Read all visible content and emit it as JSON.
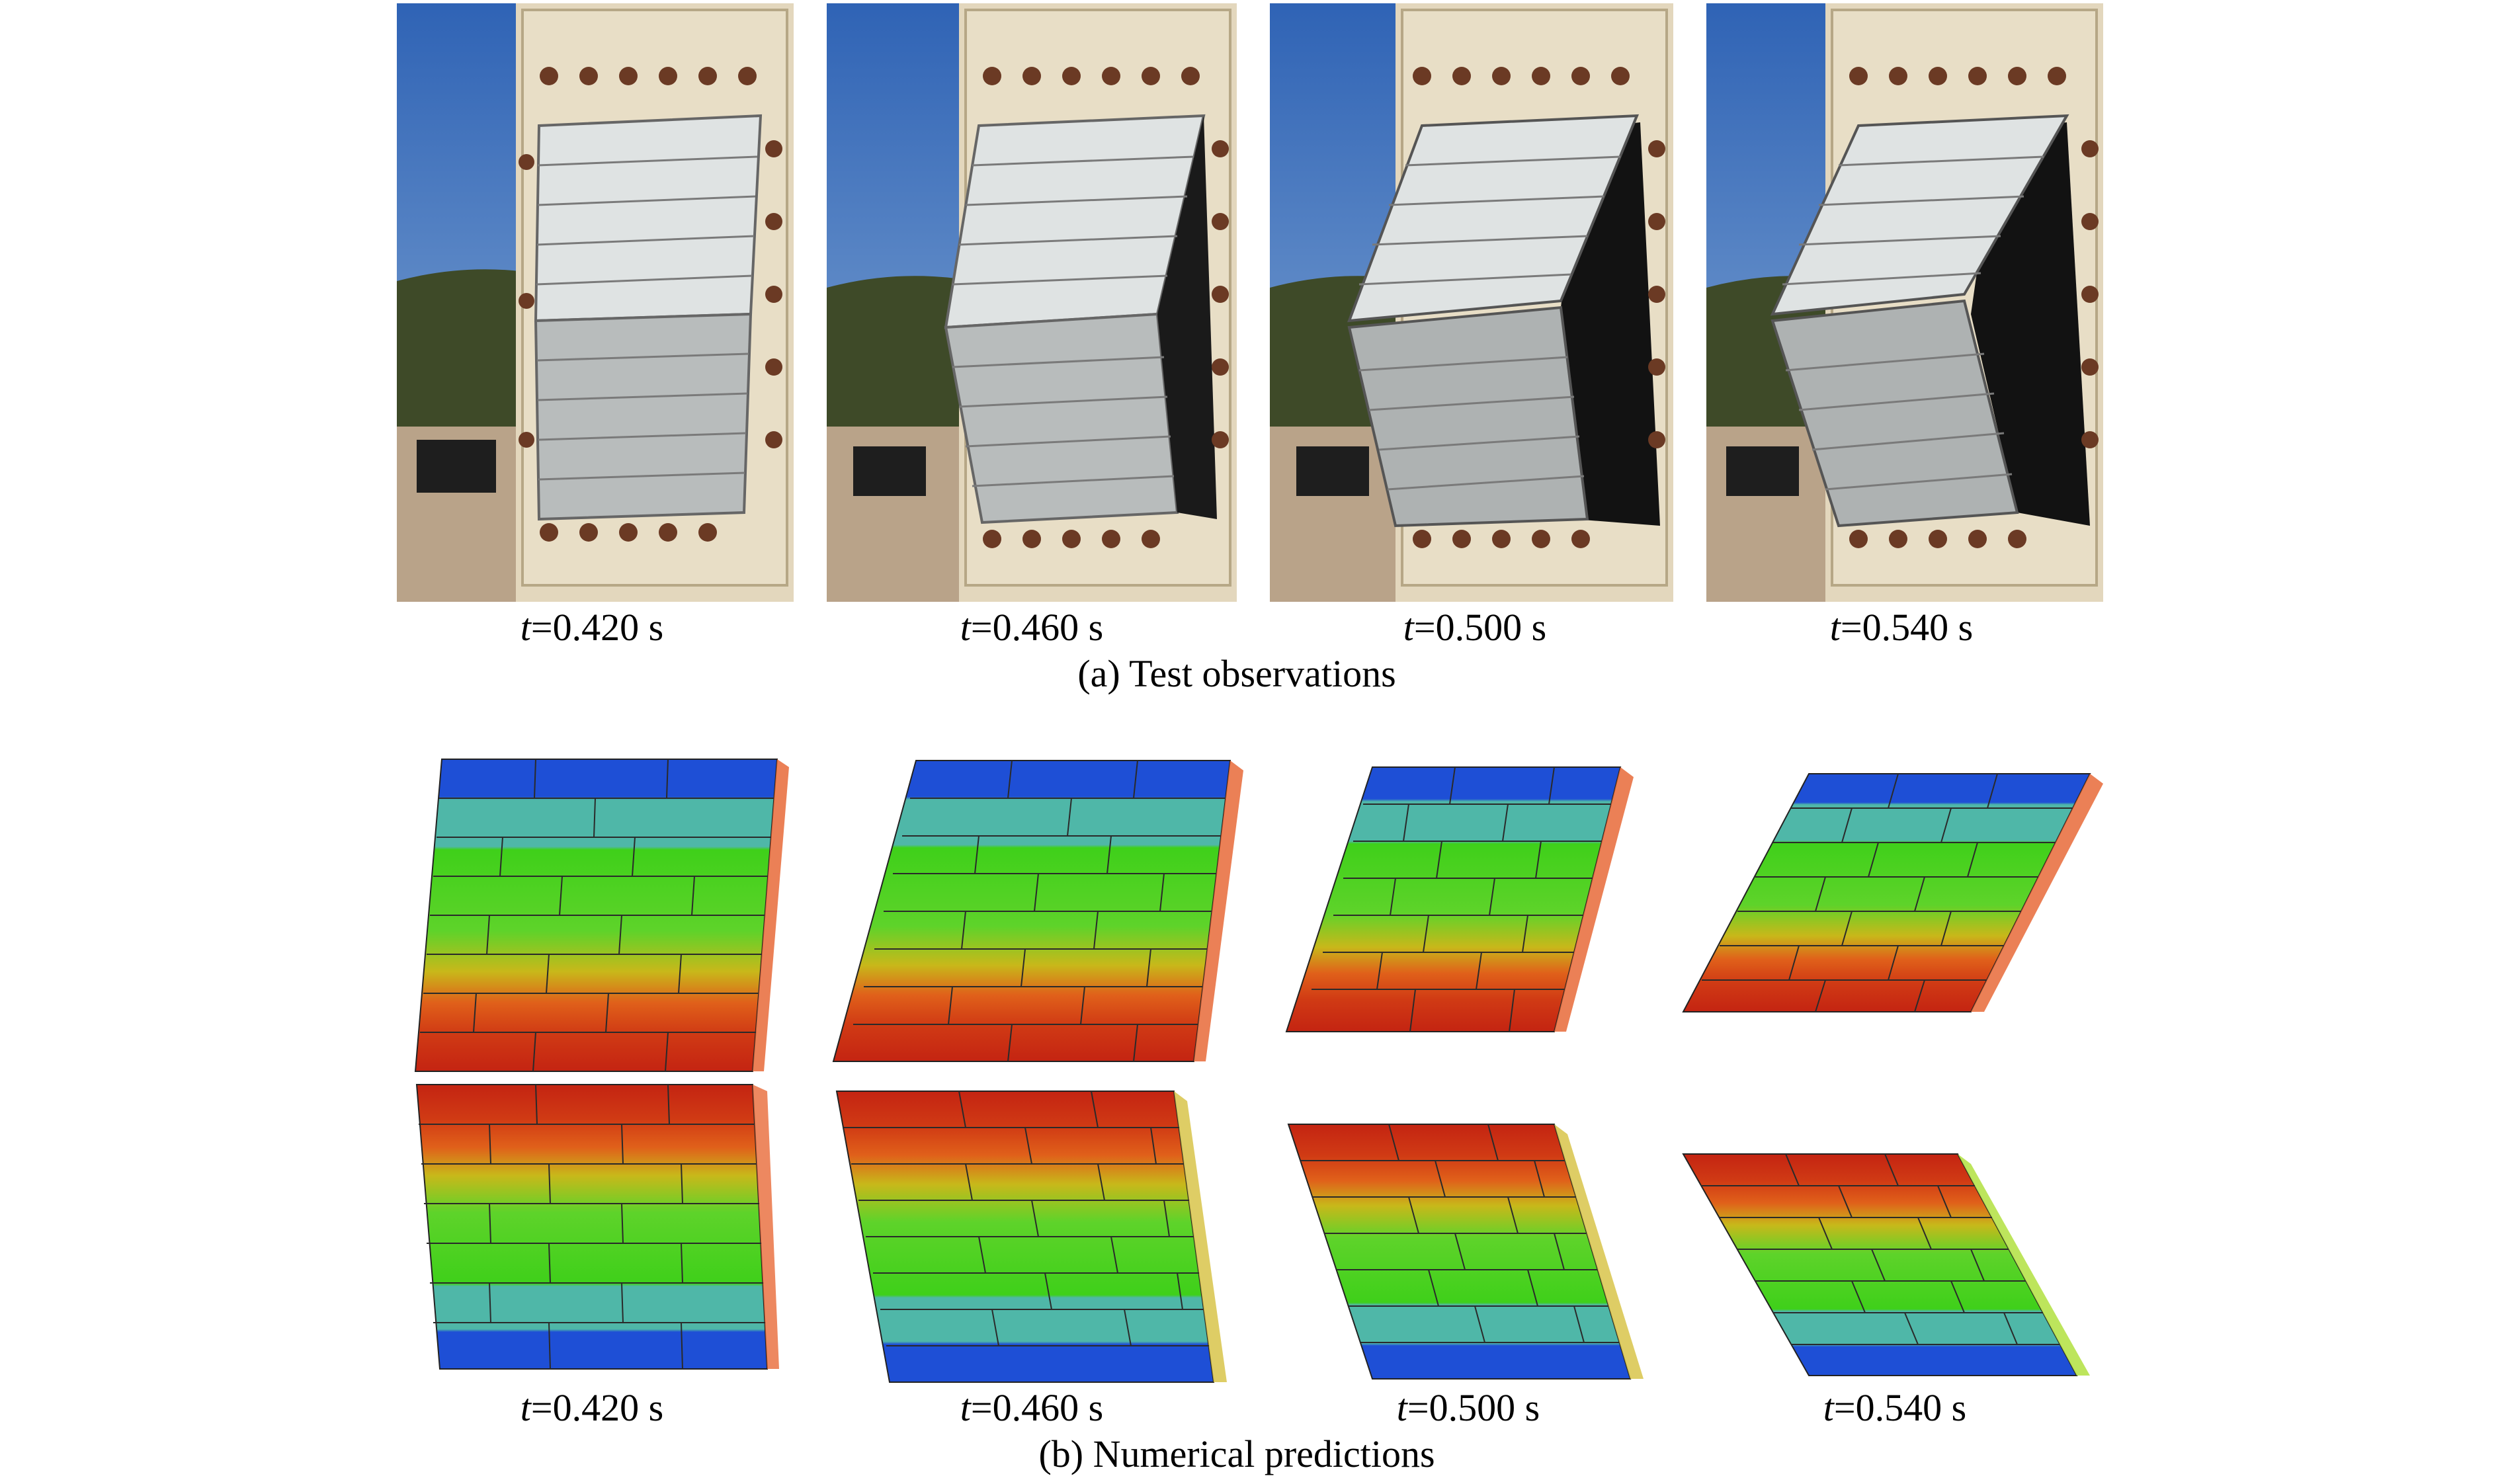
{
  "panel_a": {
    "title": "(a) Test observations",
    "frames": [
      {
        "t_var": "t",
        "t_value": "=0.420 s"
      },
      {
        "t_var": "t",
        "t_value": "=0.460 s"
      },
      {
        "t_var": "t",
        "t_value": "=0.500 s"
      },
      {
        "t_var": "t",
        "t_value": "=0.540 s"
      }
    ]
  },
  "panel_b": {
    "title": "(b) Numerical predictions",
    "frames": [
      {
        "t_var": "t",
        "t_value": "=0.420 s"
      },
      {
        "t_var": "t",
        "t_value": "=0.460 s"
      },
      {
        "t_var": "t",
        "t_value": "=0.500 s"
      },
      {
        "t_var": "t",
        "t_value": "=0.540 s"
      }
    ]
  },
  "colors": {
    "contour_blue": "#1e4fd6",
    "contour_teal": "#4fb7a8",
    "contour_green": "#3fd01a",
    "contour_yellow": "#c8b81a",
    "contour_orange": "#e0601a",
    "contour_red": "#c42412",
    "sky": "#4a7fc4",
    "frame_concrete": "#e3d7bd"
  }
}
